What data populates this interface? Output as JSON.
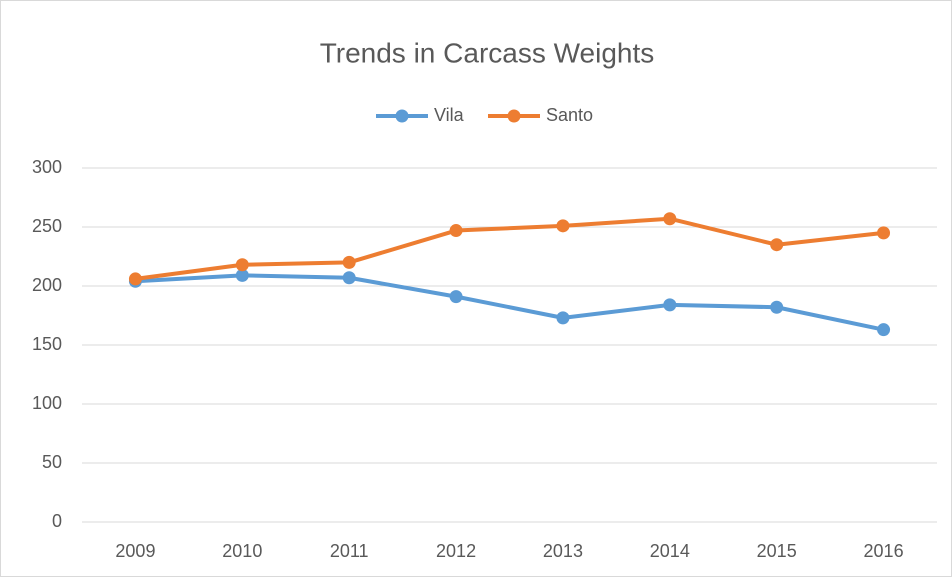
{
  "chart_data": {
    "type": "line",
    "title": "Trends in Carcass Weights",
    "categories": [
      "2009",
      "2010",
      "2011",
      "2012",
      "2013",
      "2014",
      "2015",
      "2016"
    ],
    "series": [
      {
        "name": "Vila",
        "color": "#5b9bd5",
        "values": [
          204,
          209,
          207,
          191,
          173,
          184,
          182,
          163
        ]
      },
      {
        "name": "Santo",
        "color": "#ed7d31",
        "values": [
          206,
          218,
          220,
          247,
          251,
          257,
          235,
          245
        ]
      }
    ],
    "ylim": [
      0,
      300
    ],
    "yticks": [
      0,
      50,
      100,
      150,
      200,
      250,
      300
    ],
    "grid": true,
    "legend": "top"
  }
}
